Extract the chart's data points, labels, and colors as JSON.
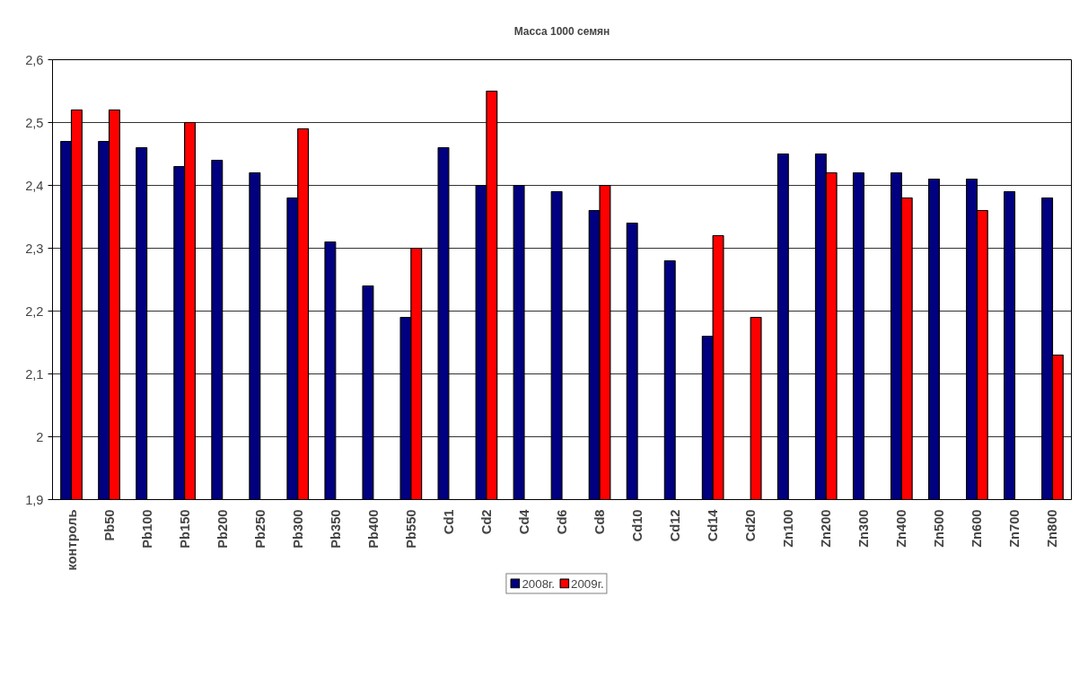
{
  "chart_data": {
    "type": "bar",
    "title": "Масса 1000 семян",
    "categories": [
      "контроль",
      "Pb50",
      "Pb100",
      "Pb150",
      "Pb200",
      "Pb250",
      "Pb300",
      "Pb350",
      "Pb400",
      "Pb550",
      "Cd1",
      "Cd2",
      "Cd4",
      "Cd6",
      "Cd8",
      "Cd10",
      "Cd12",
      "Cd14",
      "Cd20",
      "Zn100",
      "Zn200",
      "Zn300",
      "Zn400",
      "Zn500",
      "Zn600",
      "Zn700",
      "Zn800"
    ],
    "series": [
      {
        "name": "2008г.",
        "color": "#000080",
        "values": [
          2.47,
          2.47,
          2.46,
          2.43,
          2.44,
          2.42,
          2.38,
          2.31,
          2.24,
          2.19,
          2.46,
          2.4,
          2.4,
          2.39,
          2.36,
          2.34,
          2.28,
          2.16,
          null,
          2.45,
          2.45,
          2.42,
          2.42,
          2.41,
          2.41,
          2.39,
          2.38
        ]
      },
      {
        "name": "2009г.",
        "color": "#ff0000",
        "values": [
          2.52,
          2.52,
          null,
          2.5,
          null,
          null,
          2.49,
          null,
          null,
          2.3,
          null,
          2.55,
          null,
          null,
          2.4,
          null,
          null,
          2.32,
          2.19,
          null,
          2.42,
          null,
          2.38,
          null,
          2.36,
          null,
          2.13
        ]
      }
    ],
    "ylim": [
      1.9,
      2.6
    ],
    "yticks": [
      {
        "value": 1.9,
        "label": "1,9"
      },
      2,
      {
        "value": 2.1,
        "label": "2,1"
      },
      {
        "value": 2.2,
        "label": "2,2"
      },
      {
        "value": 2.3,
        "label": "2,3"
      },
      {
        "value": 2.4,
        "label": "2,4"
      },
      {
        "value": 2.5,
        "label": "2,5"
      },
      {
        "value": 2.6,
        "label": "2,6"
      }
    ],
    "grid": "y",
    "legend": "bottom"
  }
}
